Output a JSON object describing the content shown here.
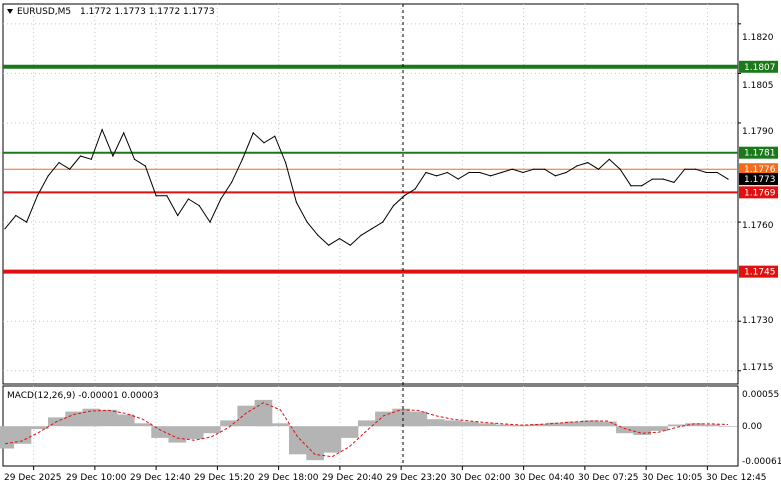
{
  "header": {
    "symbol": "EURUSD,M5",
    "ohlc": "1.1772 1.1773 1.1772 1.1773"
  },
  "macd": {
    "label": "MACD(12,26,9) -0.00001 0.00003",
    "axis_labels": [
      "0.00055",
      "0.00",
      "-0.00061"
    ]
  },
  "price_axis": {
    "labels": [
      "1.1820",
      "1.1805",
      "1.1790",
      "1.1760",
      "1.1730",
      "1.1715"
    ]
  },
  "levels": [
    {
      "name": "upper-green",
      "price": 1.1807,
      "label": "1.1807",
      "color": "#1a7a1a"
    },
    {
      "name": "mid-green",
      "price": 1.1781,
      "label": "1.1781",
      "color": "#1a7a1a"
    },
    {
      "name": "current-orange",
      "price": 1.1776,
      "label": "1.1776",
      "color": "#f26b1b"
    },
    {
      "name": "current-price",
      "price": 1.1773,
      "label": "1.1773",
      "color": "#000000"
    },
    {
      "name": "mid-red",
      "price": 1.1769,
      "label": "1.1769",
      "color": "#e01010"
    },
    {
      "name": "low-red",
      "price": 1.1745,
      "label": "1.1745",
      "color": "#e01010"
    }
  ],
  "time_axis": {
    "labels": [
      "29 Dec 2025",
      "29 Dec 10:00",
      "29 Dec 12:40",
      "29 Dec 15:20",
      "29 Dec 18:00",
      "29 Dec 20:40",
      "29 Dec 23:20",
      "30 Dec 02:00",
      "30 Dec 04:40",
      "30 Dec 07:25",
      "30 Dec 10:05",
      "30 Dec 12:45"
    ]
  },
  "chart_data": {
    "type": "line",
    "title": "EURUSD,M5",
    "xlabel": "",
    "ylabel": "",
    "ylim": [
      1.1711,
      1.1826
    ],
    "grid": true,
    "x_ticks": [
      "29 Dec 2025",
      "29 Dec 10:00",
      "29 Dec 12:40",
      "29 Dec 15:20",
      "29 Dec 18:00",
      "29 Dec 20:40",
      "29 Dec 23:20",
      "30 Dec 02:00",
      "30 Dec 04:40",
      "30 Dec 07:25",
      "30 Dec 10:05",
      "30 Dec 12:45"
    ],
    "y_ticks": [
      1.182,
      1.1805,
      1.179,
      1.176,
      1.173,
      1.1715
    ],
    "series": [
      {
        "values": [
          1.1758,
          1.1762,
          1.176,
          1.1768,
          1.1774,
          1.1778,
          1.1776,
          1.178,
          1.1779,
          1.1788,
          1.178,
          1.1787,
          1.1779,
          1.1777,
          1.1768,
          1.1768,
          1.1762,
          1.1767,
          1.1765,
          1.176,
          1.1767,
          1.1772,
          1.1779,
          1.1787,
          1.1784,
          1.1786,
          1.1778,
          1.1766,
          1.176,
          1.1756,
          1.1753,
          1.1755,
          1.1753,
          1.1756,
          1.1758,
          1.176,
          1.1765,
          1.1768,
          1.177,
          1.1775,
          1.1774,
          1.1775,
          1.1773,
          1.1775,
          1.1775,
          1.1774,
          1.1775,
          1.1776,
          1.1775,
          1.1776,
          1.1776,
          1.1774,
          1.1775,
          1.1777,
          1.1778,
          1.1776,
          1.1779,
          1.1776,
          1.1771,
          1.1771,
          1.1773,
          1.1773,
          1.1772,
          1.1776,
          1.1776,
          1.1775,
          1.1775,
          1.1773
        ]
      }
    ],
    "macd": {
      "histogram": [
        -0.00038,
        -0.0003,
        -5e-05,
        0.00015,
        0.00025,
        0.0003,
        0.00028,
        0.0002,
        5e-05,
        -0.0002,
        -0.00028,
        -0.00022,
        -0.00012,
        0.0001,
        0.00035,
        0.00045,
        5e-05,
        -0.00048,
        -0.00058,
        -0.00045,
        -0.0002,
        0.0001,
        0.00025,
        0.0003,
        0.00025,
        0.00012,
        0.0001,
        8e-05,
        5e-05,
        3e-05,
        2e-05,
        4e-05,
        6e-05,
        8e-05,
        0.0001,
        8e-05,
        -0.00012,
        -0.00015,
        -8e-05,
        3e-05,
        5e-05,
        3e-05,
        -1e-05
      ],
      "signal": [
        -0.0003,
        -0.00025,
        -0.0001,
        8e-05,
        0.0002,
        0.00026,
        0.00027,
        0.00022,
        0.00012,
        -6e-05,
        -0.0002,
        -0.00024,
        -0.00018,
        -2e-05,
        0.00022,
        0.0004,
        0.00028,
        -0.00018,
        -0.00048,
        -0.00052,
        -0.00035,
        -8e-05,
        0.00018,
        0.00028,
        0.00027,
        0.00018,
        0.00012,
        9e-05,
        6e-05,
        4e-05,
        2e-05,
        3e-05,
        5e-05,
        7e-05,
        9e-05,
        9e-05,
        -4e-05,
        -0.00012,
        -0.0001,
        -2e-05,
        4e-05,
        4e-05,
        3e-05
      ]
    }
  }
}
